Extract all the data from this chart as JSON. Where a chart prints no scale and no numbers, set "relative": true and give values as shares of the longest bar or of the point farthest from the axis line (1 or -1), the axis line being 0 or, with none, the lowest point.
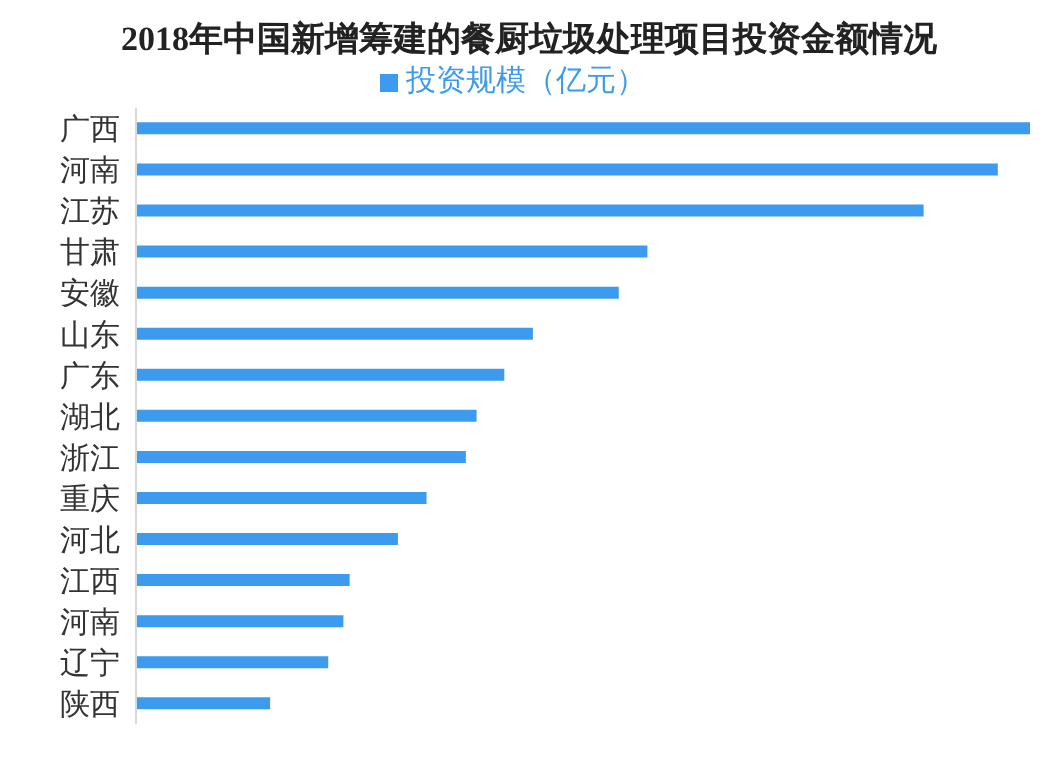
{
  "chart_data": {
    "type": "bar",
    "orientation": "horizontal",
    "relative": true,
    "title": "2018年中国新增筹建的餐厨垃圾处理项目投资金额情况",
    "categories": [
      "广西",
      "河南",
      "江苏",
      "甘肃",
      "安徽",
      "山东",
      "广东",
      "湖北",
      "浙江",
      "重庆",
      "河北",
      "江西",
      "河南",
      "辽宁",
      "陕西"
    ],
    "series": [
      {
        "name": "投资规模（亿元）",
        "color": "#3d9bef",
        "values": [
          1,
          0.964,
          0.881,
          0.572,
          0.54,
          0.444,
          0.412,
          0.381,
          0.369,
          0.325,
          0.293,
          0.239,
          0.232,
          0.215,
          0.15
        ]
      }
    ],
    "legend": "top",
    "grid": false
  }
}
